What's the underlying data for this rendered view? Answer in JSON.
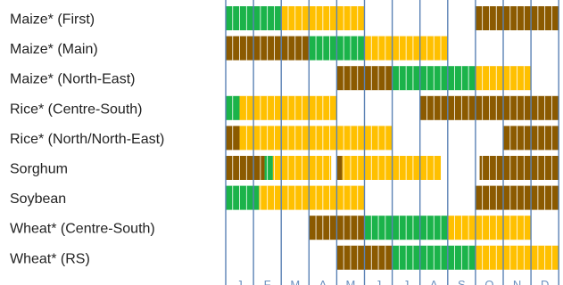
{
  "chart_data": {
    "type": "crop-calendar",
    "months": [
      "J",
      "F",
      "M",
      "A",
      "M",
      "J",
      "J",
      "A",
      "S",
      "O",
      "N",
      "D"
    ],
    "colors": {
      "sowing": "#8b5a00",
      "growing": "#1bb34a",
      "harvest": "#ffc000",
      "cell_divider": "#ffffff",
      "month_line": "#5b82b5"
    },
    "crops": [
      {
        "name": "Maize* (First)",
        "periods": [
          {
            "stage": "growing",
            "start": 0,
            "end": 2
          },
          {
            "stage": "harvest",
            "start": 2,
            "end": 5
          },
          {
            "stage": "sowing",
            "start": 9,
            "end": 12
          }
        ]
      },
      {
        "name": "Maize* (Main)",
        "periods": [
          {
            "stage": "sowing",
            "start": 0,
            "end": 3
          },
          {
            "stage": "growing",
            "start": 3,
            "end": 5
          },
          {
            "stage": "harvest",
            "start": 5,
            "end": 8
          }
        ]
      },
      {
        "name": "Maize* (North-East)",
        "periods": [
          {
            "stage": "sowing",
            "start": 4,
            "end": 6
          },
          {
            "stage": "growing",
            "start": 6,
            "end": 9
          },
          {
            "stage": "harvest",
            "start": 9,
            "end": 11
          }
        ]
      },
      {
        "name": "Rice* (Centre-South)",
        "periods": [
          {
            "stage": "growing",
            "start": 0,
            "end": 0.5
          },
          {
            "stage": "harvest",
            "start": 0.5,
            "end": 4
          },
          {
            "stage": "sowing",
            "start": 7,
            "end": 12
          }
        ]
      },
      {
        "name": "Rice* (North/North-East)",
        "periods": [
          {
            "stage": "sowing",
            "start": 0,
            "end": 0.5
          },
          {
            "stage": "harvest",
            "start": 0.5,
            "end": 6
          },
          {
            "stage": "sowing",
            "start": 10,
            "end": 12
          }
        ]
      },
      {
        "name": "Sorghum",
        "periods": [
          {
            "stage": "sowing",
            "start": 0,
            "end": 1.4
          },
          {
            "stage": "growing",
            "start": 1.4,
            "end": 1.7
          },
          {
            "stage": "harvest",
            "start": 1.7,
            "end": 3.8
          },
          {
            "stage": "sowing",
            "start": 4,
            "end": 4.2
          },
          {
            "stage": "harvest",
            "start": 4.2,
            "end": 7.75
          },
          {
            "stage": "sowing",
            "start": 9.15,
            "end": 12
          }
        ]
      },
      {
        "name": "Soybean",
        "periods": [
          {
            "stage": "growing",
            "start": 0,
            "end": 1.2
          },
          {
            "stage": "harvest",
            "start": 1.2,
            "end": 5
          },
          {
            "stage": "sowing",
            "start": 9,
            "end": 12
          }
        ]
      },
      {
        "name": "Wheat* (Centre-South)",
        "periods": [
          {
            "stage": "sowing",
            "start": 3,
            "end": 5
          },
          {
            "stage": "growing",
            "start": 5,
            "end": 8
          },
          {
            "stage": "harvest",
            "start": 8,
            "end": 11
          }
        ]
      },
      {
        "name": "Wheat* (RS)",
        "periods": [
          {
            "stage": "sowing",
            "start": 4,
            "end": 6
          },
          {
            "stage": "growing",
            "start": 6,
            "end": 9
          },
          {
            "stage": "harvest",
            "start": 9,
            "end": 12
          }
        ]
      }
    ]
  }
}
